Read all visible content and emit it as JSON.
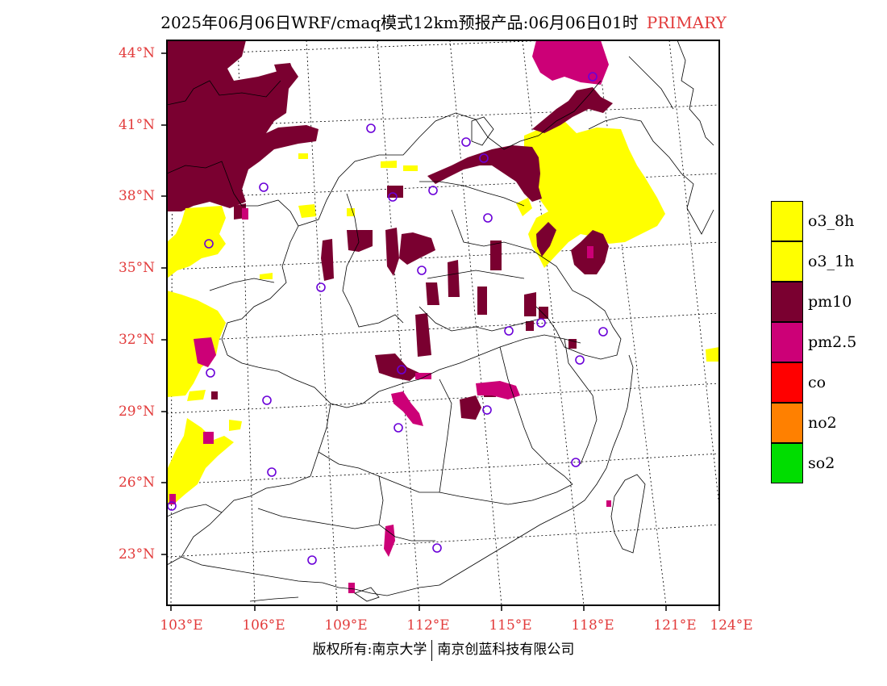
{
  "title": {
    "main": "2025年06月06日WRF/cmaq模式12km预报产品:06月06日01时",
    "tag": "PRIMARY"
  },
  "axes": {
    "lat_labels": [
      "44°N",
      "41°N",
      "38°N",
      "35°N",
      "32°N",
      "29°N",
      "26°N",
      "23°N"
    ],
    "lon_labels": [
      "103°E",
      "106°E",
      "109°E",
      "112°E",
      "115°E",
      "118°E",
      "121°E",
      "124°E"
    ]
  },
  "legend": [
    {
      "label": "o3_8h",
      "color": "#ffff00"
    },
    {
      "label": "o3_1h",
      "color": "#ffff00"
    },
    {
      "label": "pm10",
      "color": "#7a0030"
    },
    {
      "label": "pm2.5",
      "color": "#cc0077"
    },
    {
      "label": "co",
      "color": "#ff0000"
    },
    {
      "label": "no2",
      "color": "#ff8000"
    },
    {
      "label": "so2",
      "color": "#00dd00"
    }
  ],
  "footer": {
    "left": "版权所有:南京大学",
    "right": "南京创蓝科技有限公司"
  }
}
